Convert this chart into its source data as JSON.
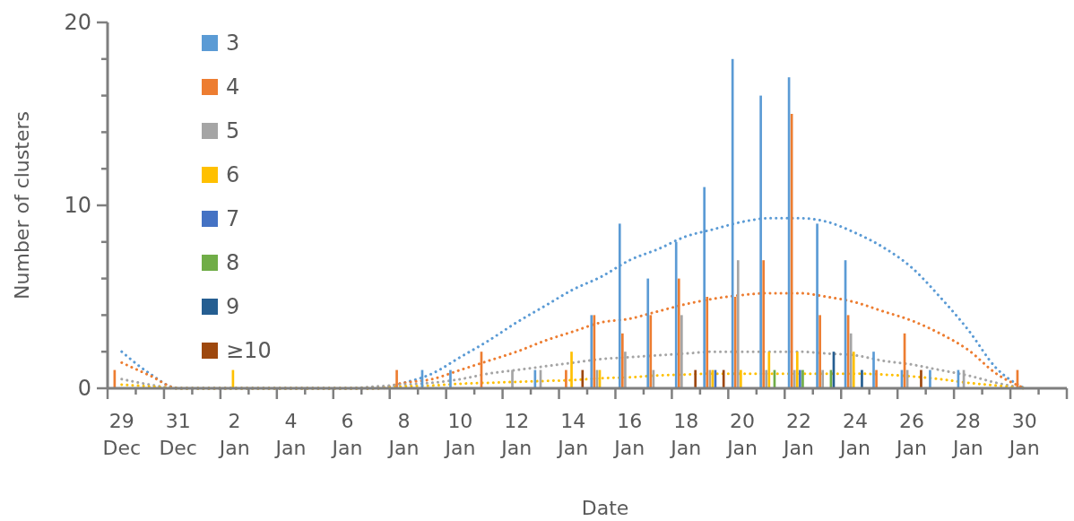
{
  "chart_data": {
    "type": "bar",
    "xlabel": "Date",
    "ylabel": "Number of clusters",
    "legend": "top left",
    "grid": false,
    "categories": [
      "29 Dec",
      null,
      "31 Dec",
      null,
      "2 Jan",
      null,
      "4 Jan",
      null,
      "6 Jan",
      null,
      "8 Jan",
      null,
      "10 Jan",
      null,
      "12 Jan",
      null,
      "14 Jan",
      null,
      "16 Jan",
      null,
      "18 Jan",
      null,
      "20 Jan",
      null,
      "22 Jan",
      null,
      "24 Jan",
      null,
      "26 Jan",
      null,
      "28 Jan",
      null,
      "30 Jan",
      null
    ],
    "ylim": [
      0,
      20
    ],
    "yticks": [
      0,
      {
        "value": 2,
        "label": null
      },
      {
        "value": 4,
        "label": null
      },
      {
        "value": 6,
        "label": null
      },
      {
        "value": 8,
        "label": null
      },
      10,
      {
        "value": 12,
        "label": null
      },
      {
        "value": 14,
        "label": null
      },
      {
        "value": 16,
        "label": null
      },
      {
        "value": 18,
        "label": null
      },
      20
    ],
    "series": [
      {
        "name": "3",
        "color": "#5b9bd5",
        "values": [
          0,
          0,
          0,
          0,
          0,
          0,
          0,
          0,
          0,
          0,
          0,
          1,
          1,
          0,
          0,
          1,
          0,
          4,
          9,
          6,
          8,
          11,
          18,
          16,
          17,
          9,
          7,
          2,
          1,
          1,
          1,
          0,
          0,
          null
        ]
      },
      {
        "name": "4",
        "color": "#ed7d31",
        "values": [
          1,
          0,
          0,
          0,
          0,
          0,
          0,
          0,
          0,
          0,
          1,
          0,
          0,
          2,
          0,
          0,
          1,
          4,
          3,
          4,
          6,
          5,
          5,
          7,
          15,
          4,
          4,
          1,
          3,
          0,
          0,
          0,
          1,
          null
        ]
      },
      {
        "name": "5",
        "color": "#a5a5a5",
        "values": [
          0,
          0,
          0,
          0,
          0,
          0,
          0,
          0,
          0,
          0,
          0,
          0,
          0,
          0,
          1,
          1,
          0,
          1,
          2,
          1,
          4,
          1,
          7,
          1,
          1,
          1,
          3,
          0,
          1,
          0,
          1,
          0,
          0,
          null
        ]
      },
      {
        "name": "6",
        "color": "#ffc000",
        "values": [
          0,
          0,
          0,
          0,
          1,
          0,
          0,
          0,
          0,
          0,
          0,
          0,
          0,
          0,
          0,
          0,
          2,
          1,
          0,
          0,
          0,
          1,
          1,
          2,
          2,
          0,
          2,
          0,
          0,
          0,
          0,
          0,
          0,
          null
        ]
      },
      {
        "name": "7",
        "color": "#4472c4",
        "values": [
          0,
          0,
          0,
          0,
          0,
          0,
          0,
          0,
          0,
          0,
          0,
          0,
          0,
          0,
          0,
          0,
          0,
          0,
          0,
          0,
          0,
          1,
          0,
          0,
          1,
          0,
          0,
          0,
          0,
          0,
          0,
          0,
          0,
          null
        ]
      },
      {
        "name": "8",
        "color": "#70ad47",
        "values": [
          0,
          0,
          0,
          0,
          0,
          0,
          0,
          0,
          0,
          0,
          0,
          0,
          0,
          0,
          0,
          0,
          0,
          0,
          0,
          0,
          0,
          0,
          0,
          1,
          1,
          1,
          0,
          0,
          0,
          0,
          0,
          0,
          0,
          null
        ]
      },
      {
        "name": "9",
        "color": "#255e91",
        "values": [
          0,
          0,
          0,
          0,
          0,
          0,
          0,
          0,
          0,
          0,
          0,
          0,
          0,
          0,
          0,
          0,
          0,
          0,
          0,
          0,
          0,
          0,
          0,
          0,
          0,
          2,
          1,
          0,
          0,
          0,
          0,
          0,
          0,
          null
        ]
      },
      {
        "name": "≥10",
        "color": "#9e480e",
        "values": [
          0,
          0,
          0,
          0,
          0,
          0,
          0,
          0,
          0,
          0,
          0,
          0,
          0,
          0,
          0,
          0,
          1,
          0,
          0,
          0,
          1,
          1,
          0,
          0,
          0,
          0,
          0,
          0,
          1,
          0,
          0,
          0,
          0,
          null
        ]
      },
      {
        "type": "line",
        "color": "#5b9bd5",
        "line_style": "dotted",
        "values": [
          2.0,
          0.8,
          0,
          0,
          0,
          0,
          0,
          0,
          0,
          0,
          0.3,
          0.8,
          1.7,
          2.6,
          3.6,
          4.5,
          5.4,
          6.1,
          7.0,
          7.6,
          8.3,
          8.7,
          9.1,
          9.3,
          9.3,
          9.1,
          8.5,
          7.7,
          6.6,
          5.0,
          3.2,
          1.1,
          0,
          null
        ]
      },
      {
        "type": "line",
        "color": "#ed7d31",
        "line_style": "dotted",
        "values": [
          1.4,
          0.7,
          0,
          0,
          0,
          0,
          0,
          0,
          0,
          0,
          0.3,
          0.5,
          1.0,
          1.5,
          2.0,
          2.6,
          3.1,
          3.6,
          3.8,
          4.2,
          4.6,
          4.9,
          5.1,
          5.2,
          5.2,
          5.0,
          4.7,
          4.2,
          3.7,
          3.0,
          2.1,
          0.8,
          0,
          null
        ]
      },
      {
        "type": "line",
        "color": "#a5a5a5",
        "line_style": "dotted",
        "values": [
          0.5,
          0.2,
          0,
          0,
          0,
          0,
          0,
          0,
          0,
          0.1,
          0.2,
          0.3,
          0.5,
          0.8,
          1.0,
          1.2,
          1.4,
          1.6,
          1.7,
          1.8,
          1.9,
          2.0,
          2.0,
          2.0,
          2.0,
          1.9,
          1.8,
          1.5,
          1.3,
          1.0,
          0.7,
          0.3,
          0,
          null
        ]
      },
      {
        "type": "line",
        "color": "#ffc000",
        "line_style": "dotted",
        "values": [
          0.2,
          0.1,
          0,
          0,
          0,
          0,
          0,
          0,
          0,
          0,
          0.1,
          0.15,
          0.25,
          0.3,
          0.35,
          0.4,
          0.45,
          0.55,
          0.6,
          0.7,
          0.75,
          0.8,
          0.8,
          0.8,
          0.8,
          0.8,
          0.8,
          0.75,
          0.65,
          0.5,
          0.3,
          0.15,
          0,
          null
        ]
      }
    ]
  }
}
